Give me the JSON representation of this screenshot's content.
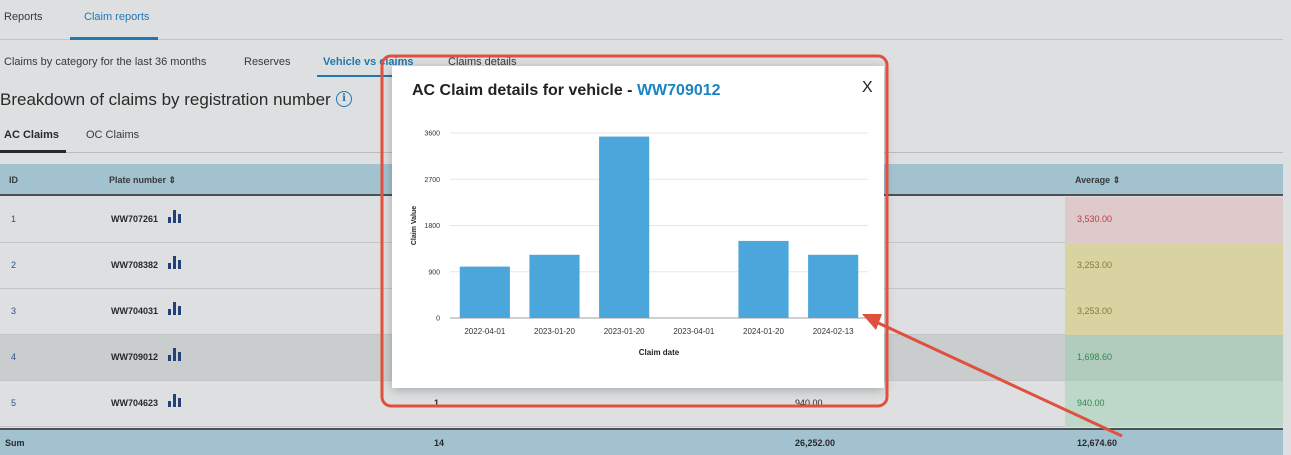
{
  "top_tabs": [
    {
      "label": "Reports"
    },
    {
      "label": "Claim reports"
    }
  ],
  "sub_tabs": [
    {
      "label": "Claims by category for the last 36 months"
    },
    {
      "label": "Reserves"
    },
    {
      "label": "Vehicle vs claims"
    },
    {
      "label": "Claims details"
    }
  ],
  "page_title": "Breakdown of claims by registration number",
  "info_glyph": "i",
  "claim_tabs": [
    {
      "label": "AC Claims"
    },
    {
      "label": "OC Claims"
    }
  ],
  "table": {
    "headers": {
      "id": "ID",
      "plate": "Plate number ⇕",
      "average": "Average ⇕"
    },
    "rows": [
      {
        "id": "1",
        "plate": "WW707261",
        "count": "",
        "total": "",
        "average": "3,530.00",
        "avg_bg": "#e8d0d2",
        "avg_color": "#c0393f"
      },
      {
        "id": "2",
        "plate": "WW708382",
        "count": "",
        "total": "",
        "average": "3,253.00",
        "avg_bg": "#e2d9a4",
        "avg_color": "#8a7a3a"
      },
      {
        "id": "3",
        "plate": "WW704031",
        "count": "",
        "total": "",
        "average": "3,253.00",
        "avg_bg": "#e2d9a4",
        "avg_color": "#8a7a3a"
      },
      {
        "id": "4",
        "plate": "WW709012",
        "count": "",
        "total": "",
        "average": "1,698.60",
        "avg_bg": "#b7d2c2",
        "avg_color": "#2d8a4e"
      },
      {
        "id": "5",
        "plate": "WW704623",
        "count": "1",
        "total": "940.00",
        "average": "940.00",
        "avg_bg": "#c4e0cf",
        "avg_color": "#2d8a4e"
      }
    ],
    "sum": {
      "label": "Sum",
      "count": "14",
      "total": "26,252.00",
      "average": "12,674.60"
    }
  },
  "modal": {
    "title_prefix": "AC Claim details for vehicle - ",
    "vehicle_id": "WW709012",
    "close_label": "X"
  },
  "chart_data": {
    "type": "bar",
    "categories": [
      "2022-04-01",
      "2023-01-20",
      "2023-01-20",
      "2023-04-01",
      "2024-01-20",
      "2024-02-13"
    ],
    "values": [
      1000,
      1230,
      3530,
      0,
      1500,
      1230
    ],
    "xlabel": "Claim date",
    "ylabel": "Claim Value",
    "ylim": [
      0,
      3600
    ],
    "yticks": [
      0,
      900,
      1800,
      2700,
      3600
    ],
    "grid": true,
    "bar_color": "#4aa6db"
  },
  "colors": {
    "accent": "#1a78b4",
    "annotation": "#e0503f"
  }
}
